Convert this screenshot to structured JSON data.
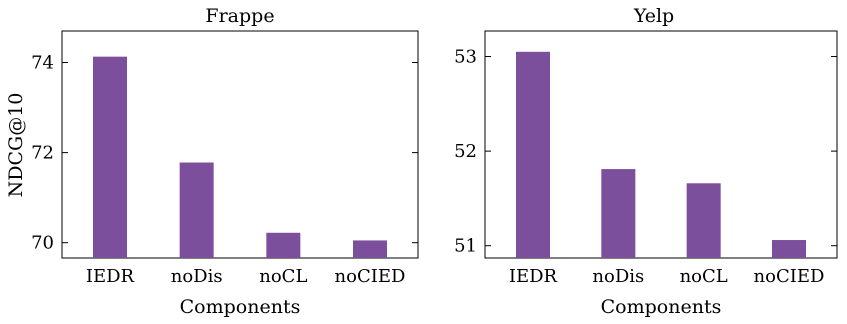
{
  "chart_data": [
    {
      "type": "bar",
      "title": "Frappe",
      "xlabel": "Components",
      "ylabel": "NDCG@10",
      "categories": [
        "IEDR",
        "noDis",
        "noCL",
        "noCIED"
      ],
      "values": [
        74.13,
        71.78,
        70.22,
        70.05
      ],
      "ylim": [
        69.66,
        74.7
      ],
      "yticks": [
        "70",
        "72",
        "74"
      ],
      "bar_color": "#7b4f9b",
      "grid": false
    },
    {
      "type": "bar",
      "title": "Yelp",
      "xlabel": "Components",
      "ylabel": "",
      "categories": [
        "IEDR",
        "noDis",
        "noCL",
        "noCIED"
      ],
      "values": [
        53.05,
        51.81,
        51.66,
        51.06
      ],
      "ylim": [
        50.87,
        53.27
      ],
      "yticks": [
        "51",
        "52",
        "53"
      ],
      "bar_color": "#7b4f9b",
      "grid": false
    }
  ]
}
